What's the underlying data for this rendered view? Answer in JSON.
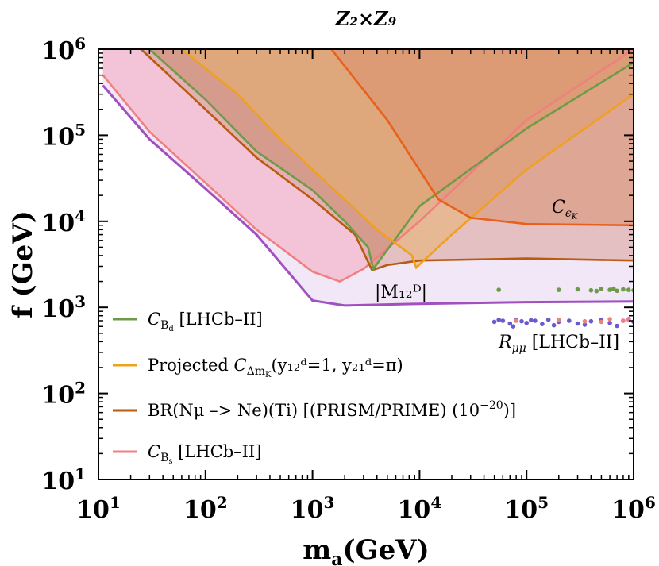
{
  "chart_data": {
    "type": "area",
    "title": "Z₂×Z₉",
    "xlabel": "mₐ(GeV)",
    "ylabel": "f (GeV)",
    "xscale": "log",
    "yscale": "log",
    "xlim": [
      10,
      1000000
    ],
    "ylim": [
      10,
      1000000
    ],
    "x_ticks": [
      {
        "value": 10,
        "base": "10",
        "exp": "1"
      },
      {
        "value": 100,
        "base": "10",
        "exp": "2"
      },
      {
        "value": 1000,
        "base": "10",
        "exp": "3"
      },
      {
        "value": 10000,
        "base": "10",
        "exp": "4"
      },
      {
        "value": 100000,
        "base": "10",
        "exp": "5"
      },
      {
        "value": 1000000,
        "base": "10",
        "exp": "6"
      }
    ],
    "y_ticks": [
      {
        "value": 10,
        "base": "10",
        "exp": "1"
      },
      {
        "value": 100,
        "base": "10",
        "exp": "2"
      },
      {
        "value": 1000,
        "base": "10",
        "exp": "3"
      },
      {
        "value": 10000,
        "base": "10",
        "exp": "4"
      },
      {
        "value": 100000,
        "base": "10",
        "exp": "5"
      },
      {
        "value": 1000000,
        "base": "10",
        "exp": "6"
      }
    ],
    "legend_position": "bottom-left",
    "legend": [
      {
        "key": "cbd",
        "color": "#6e9a4a",
        "main": "C",
        "sub": "B",
        "subsub": "d",
        "tail": " [LHCb–II]"
      },
      {
        "key": "dmk",
        "color": "#f0a020",
        "pre": "Projected ",
        "main": "C",
        "sub": "Δm",
        "subsub": "K",
        "tail": "(y₁₂ᵈ=1, y₂₁ᵈ=π)"
      },
      {
        "key": "br",
        "color": "#b85a10",
        "text": "BR(Nμ –> Ne)(Ti) [(PRISM/PRIME) (10",
        "sup": "−20",
        "tail": ")]"
      },
      {
        "key": "cbs",
        "color": "#f08080",
        "main": "C",
        "sub": "B",
        "subsub": "s",
        "tail": " [LHCb–II]"
      }
    ],
    "annotations": {
      "ceps": {
        "main": "C",
        "sub": "ϵ",
        "subsub": "K"
      },
      "m12": {
        "text": "|M₁₂ᴰ|"
      },
      "rmumu": {
        "main": "R",
        "sub": "μμ",
        "tail": " [LHCb–II]"
      }
    },
    "series": [
      {
        "name": "C_B_s [LHCb–II]",
        "key": "cbs",
        "color": "#f08080",
        "fill": "#f4a8c0",
        "x": [
          11,
          30,
          100,
          300,
          1000,
          1800,
          3000,
          10000,
          100000,
          1000000
        ],
        "y": [
          500000,
          110000,
          28000,
          8000,
          2600,
          2000,
          2800,
          10000,
          150000,
          1000000
        ]
      },
      {
        "name": "C_B_d [LHCb–II]",
        "key": "cbd",
        "color": "#6e9a4a",
        "fill": "#c88a6c",
        "x": [
          30,
          100,
          300,
          1000,
          2000,
          3300,
          3700,
          10000,
          100000,
          1000000
        ],
        "y": [
          1000000,
          260000,
          65000,
          23000,
          10000,
          5000,
          2800,
          15000,
          120000,
          700000
        ]
      },
      {
        "name": "Projected C_Δm_K",
        "key": "dmk",
        "color": "#f0a020",
        "fill": "#e8b070",
        "x": [
          60,
          200,
          500,
          1500,
          4000,
          8500,
          9300,
          20000,
          100000,
          1000000
        ],
        "y": [
          1000000,
          300000,
          90000,
          25000,
          8000,
          4000,
          2900,
          7000,
          40000,
          300000
        ]
      },
      {
        "name": "BR(Nμ –> Ne)(Ti)",
        "key": "br",
        "color": "#b85a10",
        "fill": "#d8a098",
        "x": [
          25,
          100,
          300,
          1000,
          2500,
          3600,
          5000,
          10000,
          100000,
          1000000
        ],
        "y": [
          1000000,
          200000,
          55000,
          18000,
          7000,
          2700,
          3100,
          3500,
          3700,
          3500
        ]
      },
      {
        "name": "C_ϵ_K",
        "key": "ceps",
        "color": "#e8601c",
        "fill": "#d89070",
        "x": [
          1500,
          5000,
          15000,
          30000,
          100000,
          1000000
        ],
        "y": [
          1000000,
          150000,
          18000,
          11000,
          9300,
          9000
        ]
      },
      {
        "name": "|M₁₂ᴰ|",
        "key": "m12",
        "color": "#a050c0",
        "fill": "#e6d4ee",
        "x": [
          11,
          30,
          100,
          300,
          1000,
          2000,
          10000,
          100000,
          1000000
        ],
        "y": [
          380000,
          90000,
          24000,
          7000,
          1200,
          1050,
          1100,
          1150,
          1170
        ]
      }
    ],
    "scatter": [
      {
        "name": "R_μμ purple",
        "color": "#6a5acd",
        "x": [
          50000,
          60000,
          70000,
          80000,
          90000,
          100000,
          120000,
          140000,
          160000,
          200000,
          250000,
          300000,
          400000,
          500000,
          600000,
          800000,
          1000000,
          55000,
          75000,
          110000,
          180000,
          350000,
          700000,
          900000
        ],
        "y": [
          680,
          700,
          650,
          720,
          690,
          660,
          700,
          640,
          720,
          680,
          700,
          650,
          690,
          720,
          660,
          700,
          680,
          720,
          600,
          710,
          620,
          630,
          610,
          730
        ]
      },
      {
        "name": "R_μμ pink",
        "color": "#f08080",
        "x": [
          80000,
          200000,
          350000,
          600000,
          800000,
          500000,
          900000
        ],
        "y": [
          700,
          720,
          690,
          730,
          700,
          680,
          720
        ]
      },
      {
        "name": "C_B_d green dots",
        "color": "#6e9a4a",
        "x": [
          55000,
          200000,
          300000,
          400000,
          500000,
          600000,
          700000,
          800000,
          900000,
          1000000,
          450000,
          650000
        ],
        "y": [
          1600,
          1600,
          1620,
          1580,
          1640,
          1600,
          1560,
          1620,
          1600,
          1580,
          1550,
          1650
        ]
      }
    ]
  }
}
